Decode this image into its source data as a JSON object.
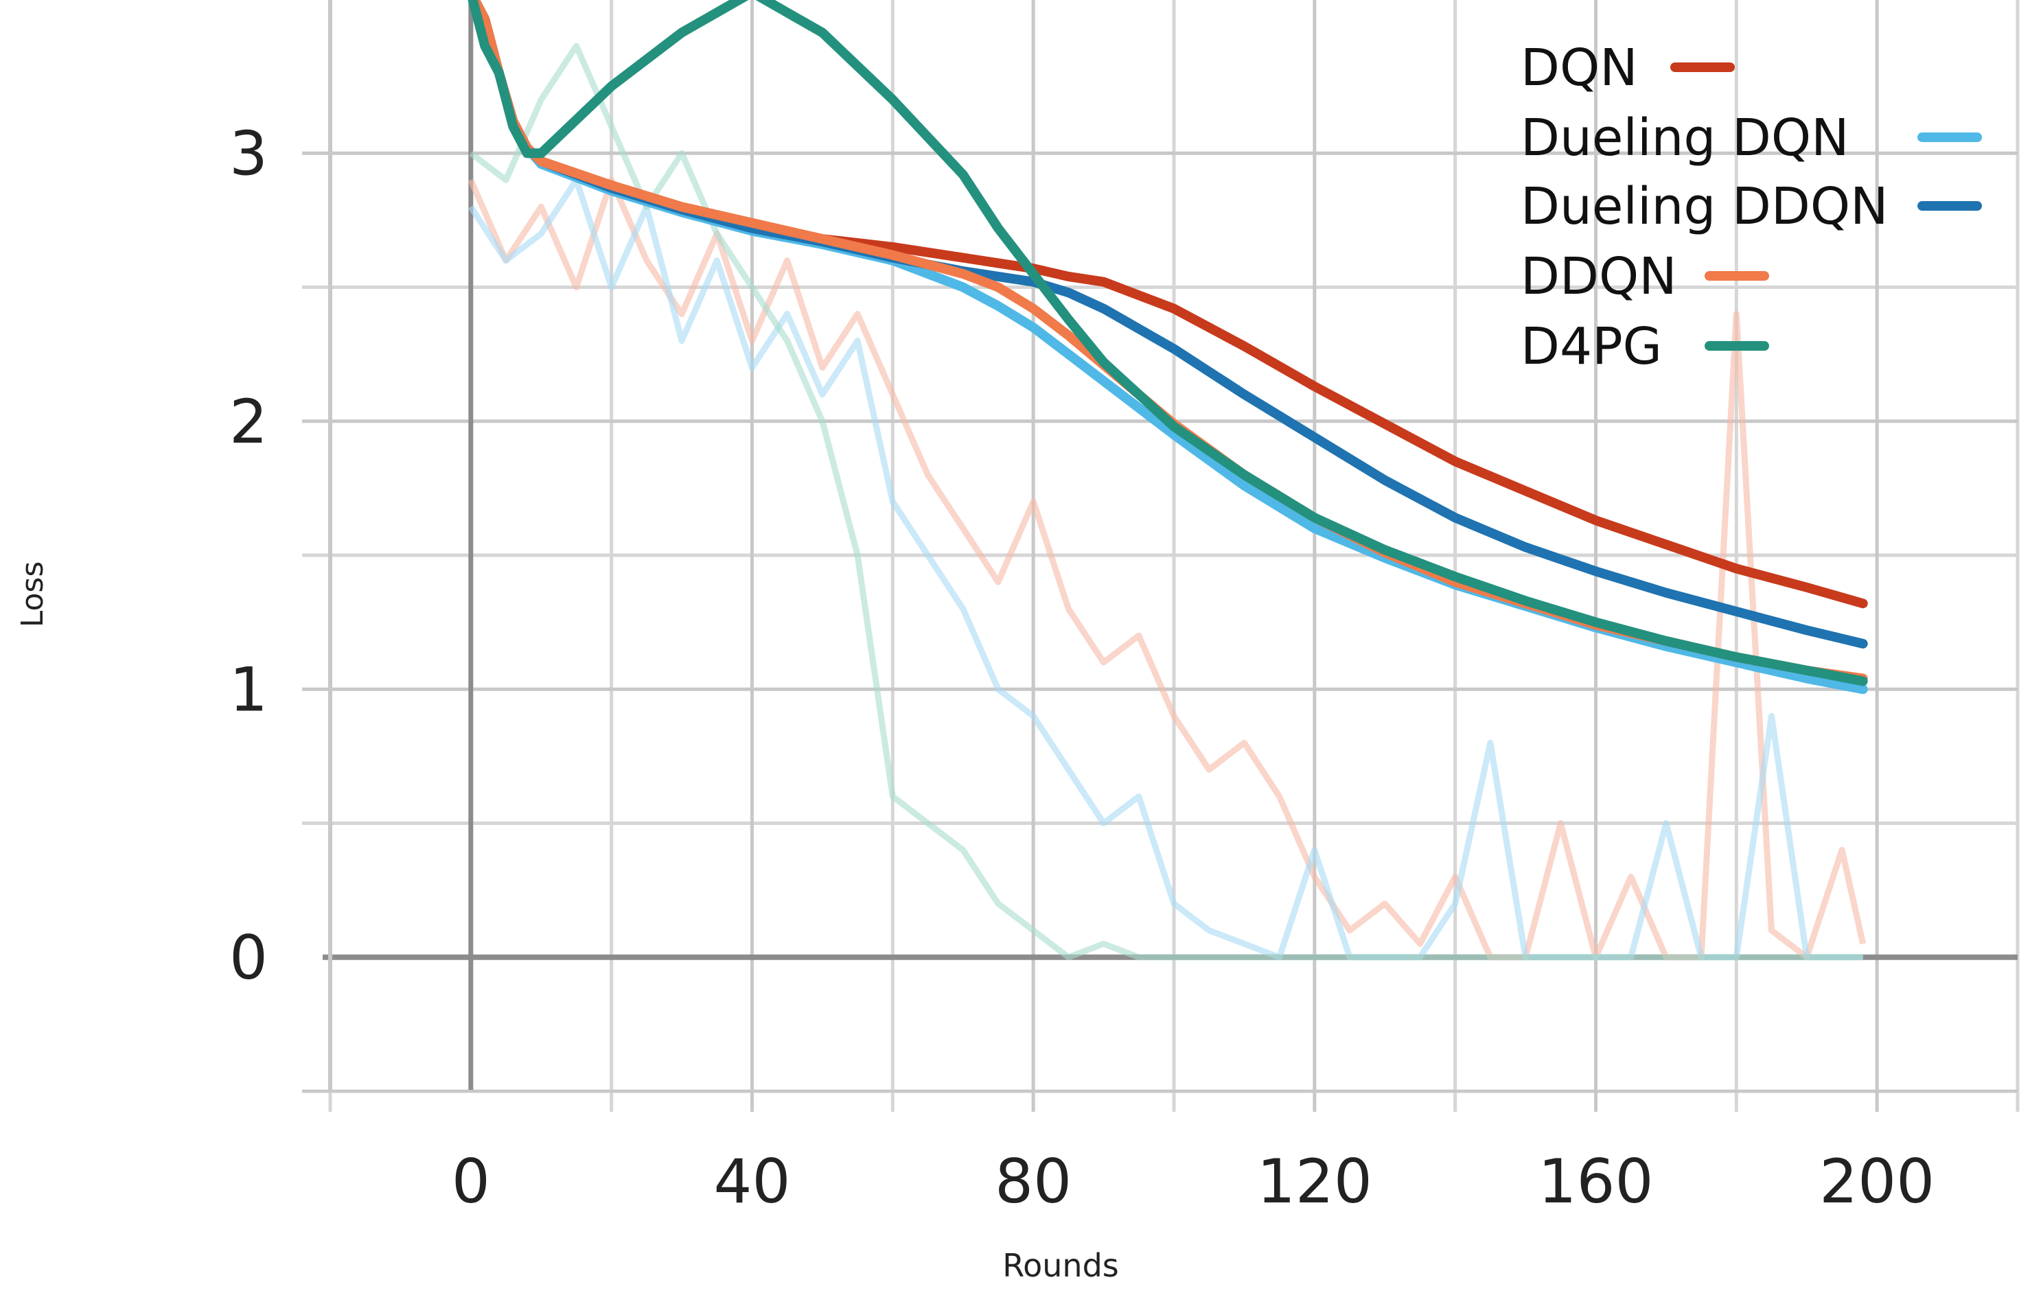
{
  "chart_data": {
    "type": "line",
    "title": "",
    "xlabel": "Rounds",
    "ylabel": "Loss",
    "xlim": [
      -20,
      220
    ],
    "ylim": [
      -0.5,
      3.5
    ],
    "grid": true,
    "x_major_ticks": [
      0,
      40,
      80,
      120,
      160,
      200
    ],
    "x_minor_ticks": [
      -20,
      20,
      60,
      100,
      140,
      180,
      220
    ],
    "y_major_ticks": [
      0,
      1,
      2,
      3
    ],
    "y_minor_ticks": [
      -0.5,
      0.5,
      1.5,
      2.5
    ],
    "legend_position": "top-right",
    "x": [
      0,
      2,
      4,
      6,
      8,
      10,
      20,
      30,
      40,
      50,
      60,
      70,
      75,
      80,
      85,
      90,
      100,
      110,
      120,
      130,
      140,
      150,
      160,
      170,
      180,
      190,
      198
    ],
    "series": [
      {
        "name": "DQN",
        "color": "#c83a1c",
        "values": [
          3.6,
          3.5,
          3.3,
          3.12,
          3.02,
          2.97,
          2.88,
          2.8,
          2.74,
          2.68,
          2.65,
          2.61,
          2.59,
          2.57,
          2.54,
          2.52,
          2.42,
          2.28,
          2.13,
          1.99,
          1.85,
          1.74,
          1.63,
          1.54,
          1.45,
          1.38,
          1.32
        ]
      },
      {
        "name": "Dueling DQN",
        "color": "#4fb8e6",
        "values": [
          3.6,
          3.5,
          3.3,
          3.12,
          3.02,
          2.96,
          2.86,
          2.78,
          2.71,
          2.66,
          2.6,
          2.5,
          2.43,
          2.35,
          2.25,
          2.15,
          1.95,
          1.76,
          1.6,
          1.49,
          1.39,
          1.31,
          1.23,
          1.16,
          1.1,
          1.04,
          1.0
        ]
      },
      {
        "name": "Dueling DDQN",
        "color": "#1f73b0",
        "values": [
          3.6,
          3.5,
          3.3,
          3.12,
          3.02,
          2.97,
          2.87,
          2.79,
          2.72,
          2.67,
          2.61,
          2.56,
          2.54,
          2.52,
          2.48,
          2.42,
          2.27,
          2.1,
          1.94,
          1.78,
          1.64,
          1.53,
          1.44,
          1.36,
          1.29,
          1.22,
          1.17
        ]
      },
      {
        "name": "DDQN",
        "color": "#f07a4a",
        "values": [
          3.6,
          3.5,
          3.3,
          3.12,
          3.02,
          2.97,
          2.88,
          2.8,
          2.74,
          2.68,
          2.62,
          2.55,
          2.5,
          2.42,
          2.32,
          2.21,
          1.99,
          1.8,
          1.64,
          1.51,
          1.4,
          1.32,
          1.24,
          1.18,
          1.12,
          1.07,
          1.04
        ]
      },
      {
        "name": "D4PG",
        "color": "#23917e",
        "values": [
          3.6,
          3.4,
          3.3,
          3.1,
          3.0,
          3.0,
          3.25,
          3.45,
          3.6,
          3.45,
          3.2,
          2.92,
          2.72,
          2.55,
          2.38,
          2.22,
          1.98,
          1.8,
          1.64,
          1.52,
          1.42,
          1.33,
          1.25,
          1.18,
          1.12,
          1.07,
          1.03
        ]
      }
    ],
    "raw_x": [
      0,
      5,
      10,
      15,
      20,
      25,
      30,
      35,
      40,
      45,
      50,
      55,
      60,
      65,
      70,
      75,
      80,
      85,
      90,
      95,
      100,
      105,
      110,
      115,
      120,
      125,
      130,
      135,
      140,
      145,
      150,
      155,
      160,
      165,
      170,
      175,
      180,
      185,
      190,
      195,
      198
    ],
    "raw_series": [
      {
        "name": "DQN",
        "color": "#f7b9a6",
        "values": [
          2.9,
          2.6,
          2.8,
          2.5,
          2.9,
          2.6,
          2.4,
          2.7,
          2.3,
          2.6,
          2.2,
          2.4,
          2.1,
          1.8,
          1.6,
          1.4,
          1.7,
          1.3,
          1.1,
          1.2,
          0.9,
          0.7,
          0.8,
          0.6,
          0.3,
          0.1,
          0.2,
          0.05,
          0.3,
          0.0,
          0.0,
          0.5,
          0.0,
          0.3,
          0.0,
          0.0,
          2.4,
          0.1,
          0.0,
          0.4,
          0.05
        ]
      },
      {
        "name": "Dueling DQN",
        "color": "#a9dbf3",
        "values": [
          2.8,
          2.6,
          2.7,
          2.9,
          2.5,
          2.8,
          2.3,
          2.6,
          2.2,
          2.4,
          2.1,
          2.3,
          1.7,
          1.5,
          1.3,
          1.0,
          0.9,
          0.7,
          0.5,
          0.6,
          0.2,
          0.1,
          0.05,
          0.0,
          0.4,
          0.0,
          0.0,
          0.0,
          0.2,
          0.8,
          0.0,
          0.0,
          0.0,
          0.0,
          0.5,
          0.0,
          0.0,
          0.9,
          0.0,
          0.0,
          0.0
        ]
      },
      {
        "name": "D4PG",
        "color": "#a8dccf",
        "values": [
          3.0,
          2.9,
          3.2,
          3.4,
          3.1,
          2.8,
          3.0,
          2.7,
          2.5,
          2.3,
          2.0,
          1.5,
          0.6,
          0.5,
          0.4,
          0.2,
          0.1,
          0.0,
          0.05,
          0.0,
          0.0,
          0.0,
          0.0,
          0.0,
          0.0,
          0.0,
          0.0,
          0.0,
          0.0,
          0.0,
          0.0,
          0.0,
          0.0,
          0.0,
          0.0,
          0.0,
          0.0,
          0.0,
          0.0,
          0.0,
          0.0
        ]
      }
    ]
  }
}
